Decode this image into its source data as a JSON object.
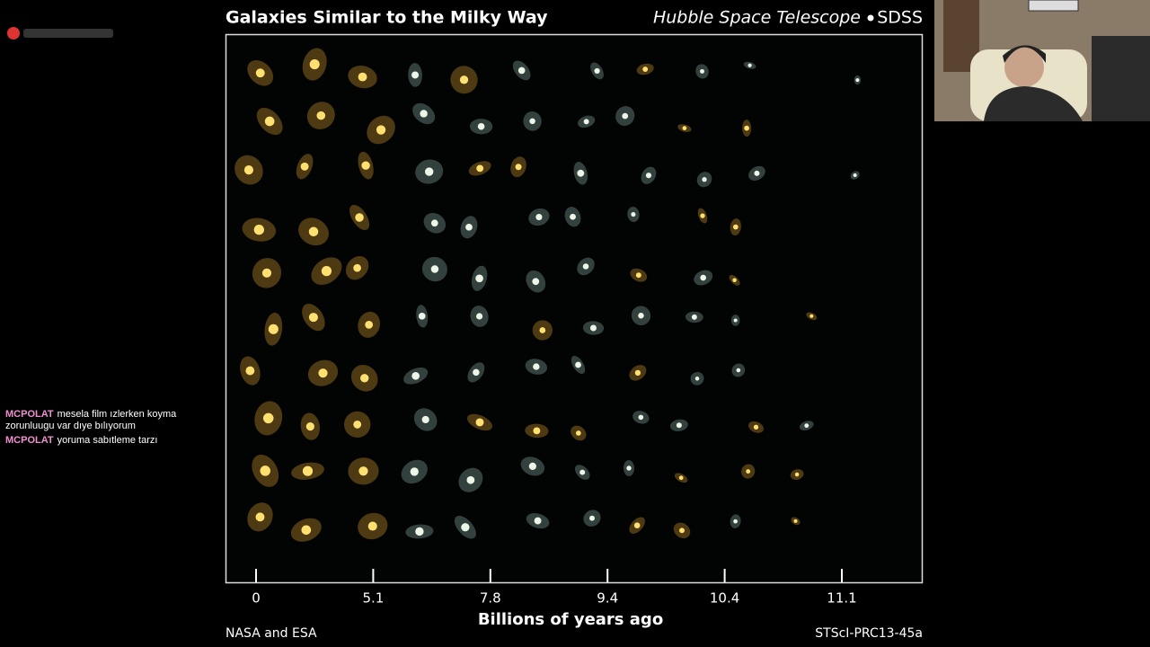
{
  "figure": {
    "title": "Galaxies Similar to the Milky Way",
    "telescope": "Hubble Space Telescope",
    "survey": "SDSS",
    "x_ticks": [
      "0",
      "5.1",
      "7.8",
      "9.4",
      "10.4",
      "11.1"
    ],
    "x_label": "Billions of years ago",
    "credit": "NASA and ESA",
    "release": "STScI-PRC13-45a"
  },
  "chat": [
    {
      "user": "MCPOLAT",
      "message": "mesela film ızlerken koyma zorunluugu var dıye bılıyorum"
    },
    {
      "user": "MCPOLAT",
      "message": "yoruma sabıtleme tarzı"
    }
  ]
}
